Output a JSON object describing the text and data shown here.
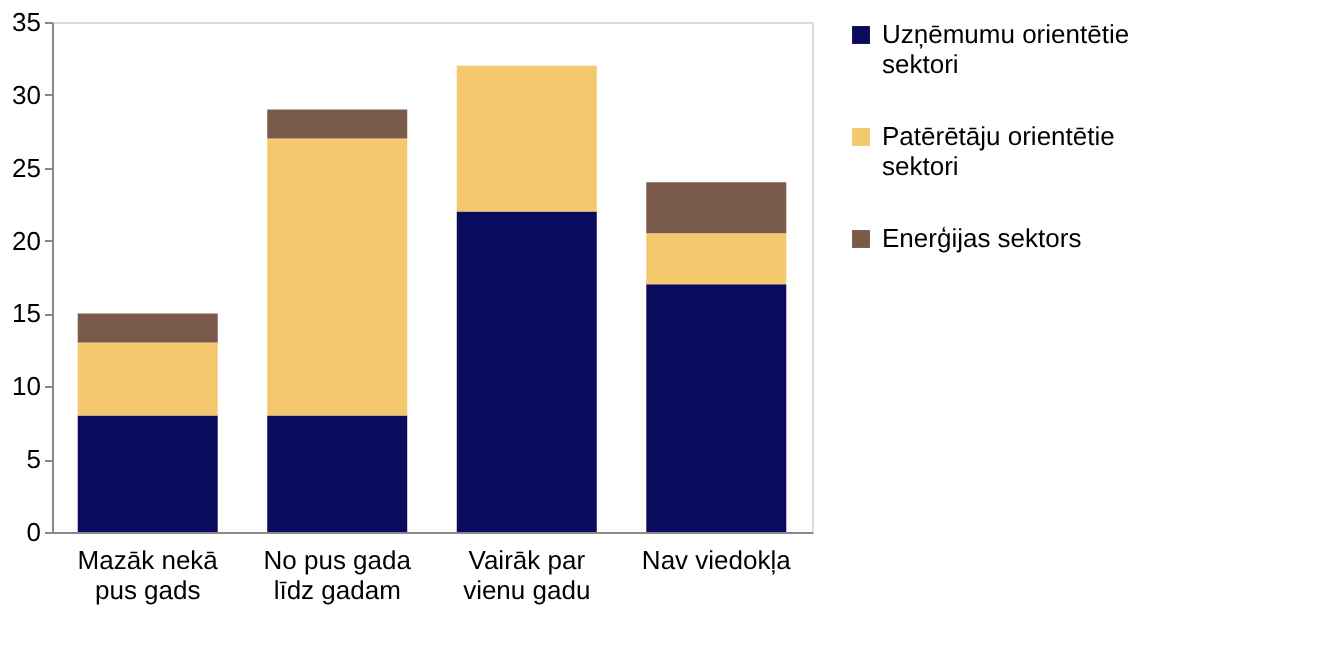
{
  "chart_data": {
    "type": "bar",
    "stacked": true,
    "categories": [
      "Mazāk nekā pus gads",
      "No pus gada līdz gadam",
      "Vairāk par vienu gadu",
      "Nav viedokļa"
    ],
    "series": [
      {
        "name": "Uzņēmumu orientētie sektori",
        "color": "#0b0b5e",
        "values": [
          8,
          8,
          22,
          17
        ]
      },
      {
        "name": "Patērētāju orientētie sektori",
        "color": "#f6c86e",
        "values": [
          5,
          19,
          10,
          3.5
        ]
      },
      {
        "name": "Enerģijas sektors",
        "color": "#7a5a48",
        "values": [
          2,
          2,
          0,
          3.5
        ]
      }
    ],
    "ylim": [
      0,
      35
    ],
    "yticks": [
      0,
      5,
      10,
      15,
      20,
      25,
      30,
      35
    ],
    "grid": false,
    "legend": "right"
  }
}
